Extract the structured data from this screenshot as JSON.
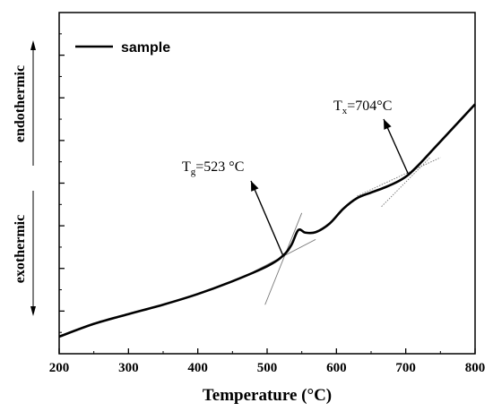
{
  "chart_data": {
    "type": "line",
    "title": "",
    "xlabel": "Temperature (°C)",
    "ylabel": "",
    "xlim": [
      200,
      800
    ],
    "x_ticks": [
      200,
      300,
      400,
      500,
      600,
      700,
      800
    ],
    "y_ticks_labeled": false,
    "grid": false,
    "legend": {
      "placement": "top-left",
      "entries": [
        "sample"
      ]
    },
    "side_labels": {
      "up": "endothermic",
      "down": "exothermic"
    },
    "series": [
      {
        "name": "sample",
        "color": "#000000",
        "x": [
          200,
          250,
          300,
          350,
          400,
          450,
          500,
          523,
          535,
          545,
          555,
          570,
          590,
          610,
          630,
          650,
          670,
          690,
          704,
          720,
          740,
          760,
          780,
          800
        ],
        "y": [
          0.4,
          0.7,
          0.93,
          1.15,
          1.4,
          1.7,
          2.05,
          2.3,
          2.55,
          2.9,
          2.84,
          2.85,
          3.05,
          3.4,
          3.65,
          3.78,
          3.9,
          4.05,
          4.2,
          4.45,
          4.8,
          5.15,
          5.5,
          5.85
        ]
      }
    ],
    "annotations": [
      {
        "base": "T",
        "sub": "g",
        "rest": "=523 °C",
        "x": 523
      },
      {
        "base": "T",
        "sub": "x",
        "rest": "=704°C",
        "x": 704
      }
    ]
  }
}
